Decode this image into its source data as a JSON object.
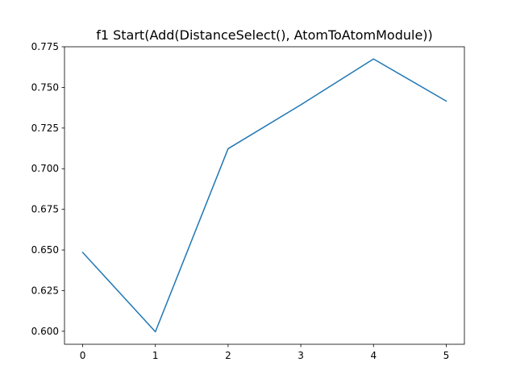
{
  "chart_data": {
    "type": "line",
    "title": "f1 Start(Add(DistanceSelect(), AtomToAtomModule))",
    "xlabel": "",
    "ylabel": "",
    "x": [
      0,
      1,
      2,
      3,
      4,
      5
    ],
    "series": [
      {
        "values": [
          0.6485,
          0.5997,
          0.7123,
          0.7393,
          0.7675,
          0.7416
        ],
        "color": "#1f77b4"
      }
    ],
    "xlim": [
      -0.25,
      5.25
    ],
    "ylim": [
      0.592,
      0.775
    ],
    "xticks": [
      "0",
      "1",
      "2",
      "3",
      "4",
      "5"
    ],
    "yticks": [
      "0.600",
      "0.625",
      "0.650",
      "0.675",
      "0.700",
      "0.725",
      "0.750",
      "0.775"
    ],
    "grid": false,
    "legend": "none"
  }
}
